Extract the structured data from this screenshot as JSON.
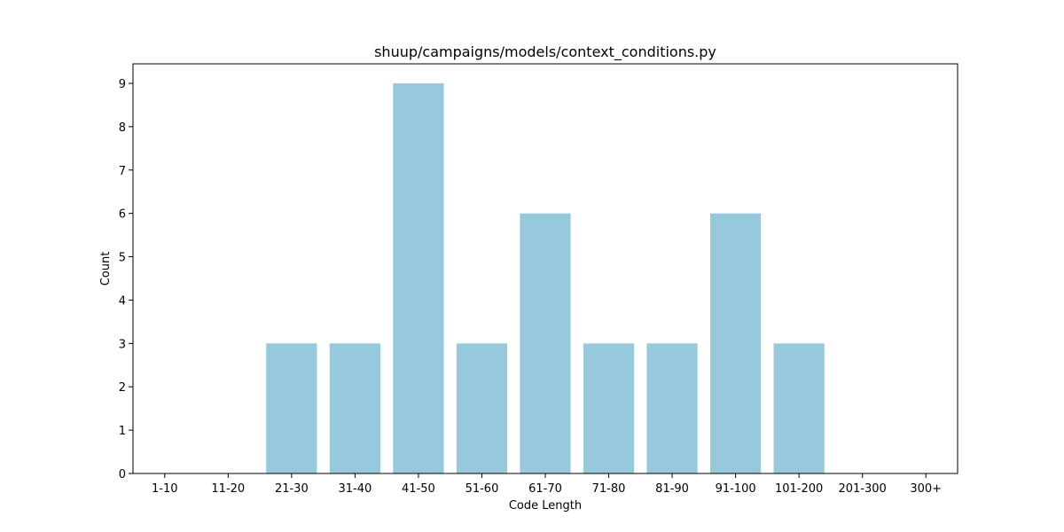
{
  "chart_data": {
    "type": "bar",
    "title": "shuup/campaigns/models/context_conditions.py",
    "xlabel": "Code Length",
    "ylabel": "Count",
    "categories": [
      "1-10",
      "11-20",
      "21-30",
      "31-40",
      "41-50",
      "51-60",
      "61-70",
      "71-80",
      "81-90",
      "91-100",
      "101-200",
      "201-300",
      "300+"
    ],
    "values": [
      0,
      0,
      3,
      3,
      9,
      3,
      6,
      3,
      3,
      6,
      3,
      0,
      0
    ],
    "ylim": [
      0,
      9.45
    ],
    "yticks": [
      0,
      1,
      2,
      3,
      4,
      5,
      6,
      7,
      8,
      9
    ],
    "grid": false,
    "bar_color": "#96c9dc"
  }
}
